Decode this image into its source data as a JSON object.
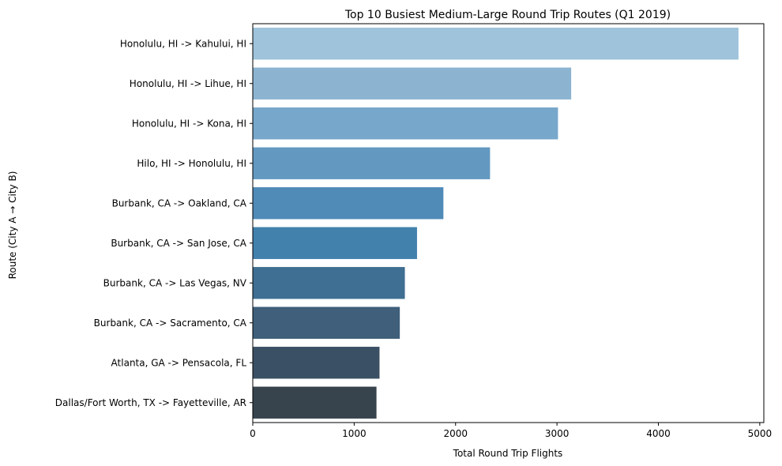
{
  "chart_data": {
    "type": "bar",
    "orientation": "horizontal",
    "title": "Top 10 Busiest Medium-Large Round Trip Routes (Q1 2019)",
    "xlabel": "Total Round Trip Flights",
    "ylabel": "Route (City A → City B)",
    "xlim": [
      0,
      5040
    ],
    "xticks": [
      0,
      1000,
      2000,
      3000,
      4000,
      5000
    ],
    "grid": false,
    "categories": [
      "Honolulu, HI -> Kahului, HI",
      "Honolulu, HI -> Lihue, HI",
      "Honolulu, HI -> Kona, HI",
      "Hilo, HI -> Honolulu, HI",
      "Burbank, CA -> Oakland, CA",
      "Burbank, CA -> San Jose, CA",
      "Burbank, CA -> Las Vegas, NV",
      "Burbank, CA -> Sacramento, CA",
      "Atlanta, GA -> Pensacola, FL",
      "Dallas/Fort Worth, TX -> Fayetteville, AR"
    ],
    "values": [
      4790,
      3140,
      3010,
      2340,
      1880,
      1620,
      1500,
      1450,
      1250,
      1220
    ],
    "colors": [
      "#9ec3db",
      "#8cb4d1",
      "#77a7ca",
      "#6399c1",
      "#508bb8",
      "#4381ad",
      "#3f6f92",
      "#3f5f7a",
      "#3a5064",
      "#38444d"
    ]
  }
}
